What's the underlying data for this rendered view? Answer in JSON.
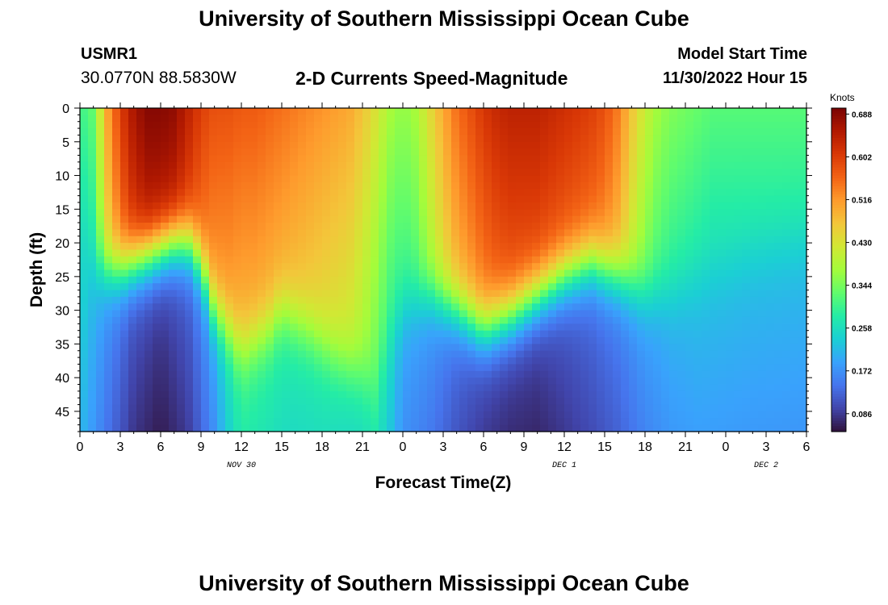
{
  "page": {
    "title": "University of Southern Mississippi Ocean Cube",
    "title_repeat": "University of Southern Mississippi Ocean Cube",
    "station": "USMR1",
    "coords": "30.0770N  88.5830W",
    "subtitle": "2-D Currents Speed-Magnitude",
    "model_start_label": "Model Start Time",
    "model_start_value": "11/30/2022 Hour 15"
  },
  "chart_data": {
    "type": "heatmap",
    "title": "2-D Currents Speed-Magnitude",
    "xlabel": "Forecast Time(Z)",
    "ylabel": "Depth (ft)",
    "x_range_hours": [
      0,
      54
    ],
    "x_ticks": [
      "0",
      "3",
      "6",
      "9",
      "12",
      "15",
      "18",
      "21",
      "0",
      "3",
      "6",
      "9",
      "12",
      "15",
      "18",
      "21",
      "0",
      "3",
      "6"
    ],
    "day_labels": [
      {
        "label": "NOV 30",
        "hour": 12
      },
      {
        "label": "DEC 1",
        "hour": 36
      },
      {
        "label": "DEC 2",
        "hour": 51
      }
    ],
    "y_range_ft": [
      0,
      48
    ],
    "y_ticks": [
      0,
      5,
      10,
      15,
      20,
      25,
      30,
      35,
      40,
      45
    ],
    "colorbar_label": "Knots",
    "colorbar_range": [
      0.05,
      0.7
    ],
    "colorbar_ticks": [
      "0.688",
      "0.602",
      "0.516",
      "0.430",
      "0.344",
      "0.258",
      "0.172",
      "0.086"
    ],
    "colorbar_tick_values": [
      0.688,
      0.602,
      0.516,
      0.43,
      0.344,
      0.258,
      0.172,
      0.086
    ],
    "colormap": [
      "#30123b",
      "#4145ab",
      "#4675ed",
      "#39a2fc",
      "#1bcfd4",
      "#24eca6",
      "#61fc6c",
      "#a4fc3b",
      "#d1e834",
      "#f3c63a",
      "#fe9b2d",
      "#f36315",
      "#d93806",
      "#b11901",
      "#7a0403"
    ],
    "speed_field": {
      "surface_knots": [
        [
          0,
          0.3
        ],
        [
          1,
          0.33
        ],
        [
          2,
          0.5
        ],
        [
          3,
          0.6
        ],
        [
          4,
          0.66
        ],
        [
          5,
          0.69
        ],
        [
          6,
          0.69
        ],
        [
          7,
          0.68
        ],
        [
          8,
          0.64
        ],
        [
          9,
          0.6
        ],
        [
          10,
          0.58
        ],
        [
          11,
          0.58
        ],
        [
          12,
          0.57
        ],
        [
          13,
          0.57
        ],
        [
          14,
          0.56
        ],
        [
          15,
          0.55
        ],
        [
          16,
          0.54
        ],
        [
          17,
          0.53
        ],
        [
          18,
          0.52
        ],
        [
          19,
          0.51
        ],
        [
          20,
          0.5
        ],
        [
          21,
          0.47
        ],
        [
          22,
          0.43
        ],
        [
          23,
          0.38
        ],
        [
          24,
          0.36
        ],
        [
          25,
          0.38
        ],
        [
          26,
          0.44
        ],
        [
          27,
          0.5
        ],
        [
          28,
          0.55
        ],
        [
          29,
          0.58
        ],
        [
          30,
          0.61
        ],
        [
          31,
          0.63
        ],
        [
          32,
          0.64
        ],
        [
          33,
          0.64
        ],
        [
          34,
          0.64
        ],
        [
          35,
          0.63
        ],
        [
          36,
          0.62
        ],
        [
          37,
          0.61
        ],
        [
          38,
          0.6
        ],
        [
          39,
          0.58
        ],
        [
          40,
          0.54
        ],
        [
          41,
          0.47
        ],
        [
          42,
          0.41
        ],
        [
          43,
          0.37
        ],
        [
          44,
          0.35
        ],
        [
          45,
          0.34
        ],
        [
          46,
          0.33
        ],
        [
          47,
          0.32
        ],
        [
          48,
          0.32
        ],
        [
          49,
          0.32
        ],
        [
          50,
          0.32
        ],
        [
          51,
          0.32
        ],
        [
          52,
          0.32
        ],
        [
          53,
          0.32
        ],
        [
          54,
          0.32
        ]
      ],
      "bottom_knots": [
        [
          0,
          0.25
        ],
        [
          2,
          0.18
        ],
        [
          4,
          0.12
        ],
        [
          6,
          0.1
        ],
        [
          8,
          0.13
        ],
        [
          10,
          0.2
        ],
        [
          11,
          0.26
        ],
        [
          12,
          0.3
        ],
        [
          14,
          0.29
        ],
        [
          16,
          0.28
        ],
        [
          18,
          0.28
        ],
        [
          20,
          0.27
        ],
        [
          21,
          0.27
        ],
        [
          22,
          0.28
        ],
        [
          23,
          0.25
        ],
        [
          24,
          0.2
        ],
        [
          26,
          0.18
        ],
        [
          28,
          0.14
        ],
        [
          30,
          0.11
        ],
        [
          32,
          0.1
        ],
        [
          34,
          0.1
        ],
        [
          36,
          0.12
        ],
        [
          38,
          0.14
        ],
        [
          40,
          0.16
        ],
        [
          42,
          0.19
        ],
        [
          44,
          0.21
        ],
        [
          46,
          0.22
        ],
        [
          48,
          0.22
        ],
        [
          50,
          0.22
        ],
        [
          52,
          0.22
        ],
        [
          54,
          0.22
        ]
      ],
      "thermocline_depth_ft": [
        [
          0,
          24
        ],
        [
          3,
          24
        ],
        [
          5,
          22
        ],
        [
          7,
          20
        ],
        [
          8,
          20
        ],
        [
          9,
          23
        ],
        [
          10,
          30
        ],
        [
          12,
          36
        ],
        [
          14,
          33
        ],
        [
          15,
          30
        ],
        [
          17,
          33
        ],
        [
          19,
          37
        ],
        [
          21,
          40
        ],
        [
          22,
          43
        ],
        [
          23,
          35
        ],
        [
          24,
          30
        ],
        [
          26,
          28
        ],
        [
          28,
          30
        ],
        [
          30,
          33
        ],
        [
          32,
          31
        ],
        [
          34,
          28
        ],
        [
          36,
          25
        ],
        [
          38,
          23
        ],
        [
          40,
          25
        ],
        [
          42,
          28
        ],
        [
          44,
          28
        ],
        [
          46,
          26
        ],
        [
          48,
          24
        ],
        [
          50,
          22
        ],
        [
          52,
          21
        ],
        [
          54,
          20
        ]
      ]
    }
  }
}
